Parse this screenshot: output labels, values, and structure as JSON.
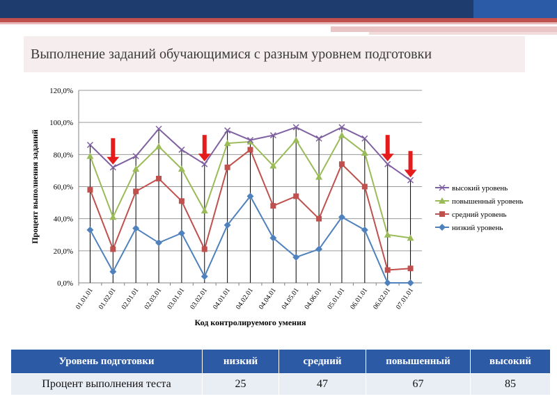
{
  "title": "Выполнение заданий обучающимися с разным уровнем подготовки",
  "chart_data": {
    "type": "line",
    "ylabel": "Процент выполнения заданий",
    "xlabel": "Код контролируемого умения",
    "ylim": [
      0,
      120
    ],
    "y_ticks": [
      "0,0%",
      "20,0%",
      "40,0%",
      "60,0%",
      "80,0%",
      "100,0%",
      "120,0%"
    ],
    "grid": true,
    "legend": "right",
    "categories": [
      "01.01.01",
      "01.02.01",
      "02.01.01",
      "02.03.01",
      "03.01.01",
      "03.02.01",
      "04.01.01",
      "04.02.01",
      "04.04.01",
      "04.05.01",
      "04.06.01",
      "05.01.01",
      "06.01.01",
      "06.02.01",
      "07.01.01"
    ],
    "series": [
      {
        "name": "высокий уровень",
        "color": "#7f60a0",
        "marker": "x",
        "values": [
          86,
          72,
          79,
          96,
          83,
          74,
          95,
          89,
          92,
          97,
          90,
          97,
          90,
          74,
          64
        ]
      },
      {
        "name": "повышенный уровень",
        "color": "#9bbb59",
        "marker": "triangle",
        "values": [
          79,
          41,
          71,
          85,
          71,
          45,
          87,
          88,
          73,
          89,
          66,
          92,
          81,
          30,
          28
        ]
      },
      {
        "name": "средний уровень",
        "color": "#c0504d",
        "marker": "square",
        "values": [
          58,
          21,
          57,
          65,
          51,
          21,
          72,
          83,
          48,
          54,
          40,
          74,
          60,
          8,
          9
        ]
      },
      {
        "name": "низкий уровень",
        "color": "#4f81bd",
        "marker": "diamond",
        "values": [
          33,
          7,
          34,
          25,
          31,
          4,
          36,
          54,
          28,
          16,
          21,
          41,
          33,
          0,
          0
        ]
      }
    ],
    "arrows_at": [
      "01.02.01",
      "03.02.01",
      "06.02.01",
      "07.01.01"
    ],
    "arrow_color": "#e51c1c"
  },
  "table": {
    "headers": [
      "Уровень подготовки",
      "низкий",
      "средний",
      "повышенный",
      "высокий"
    ],
    "row_label": "Процент выполнения теста",
    "values": [
      "25",
      "47",
      "67",
      "85"
    ]
  }
}
